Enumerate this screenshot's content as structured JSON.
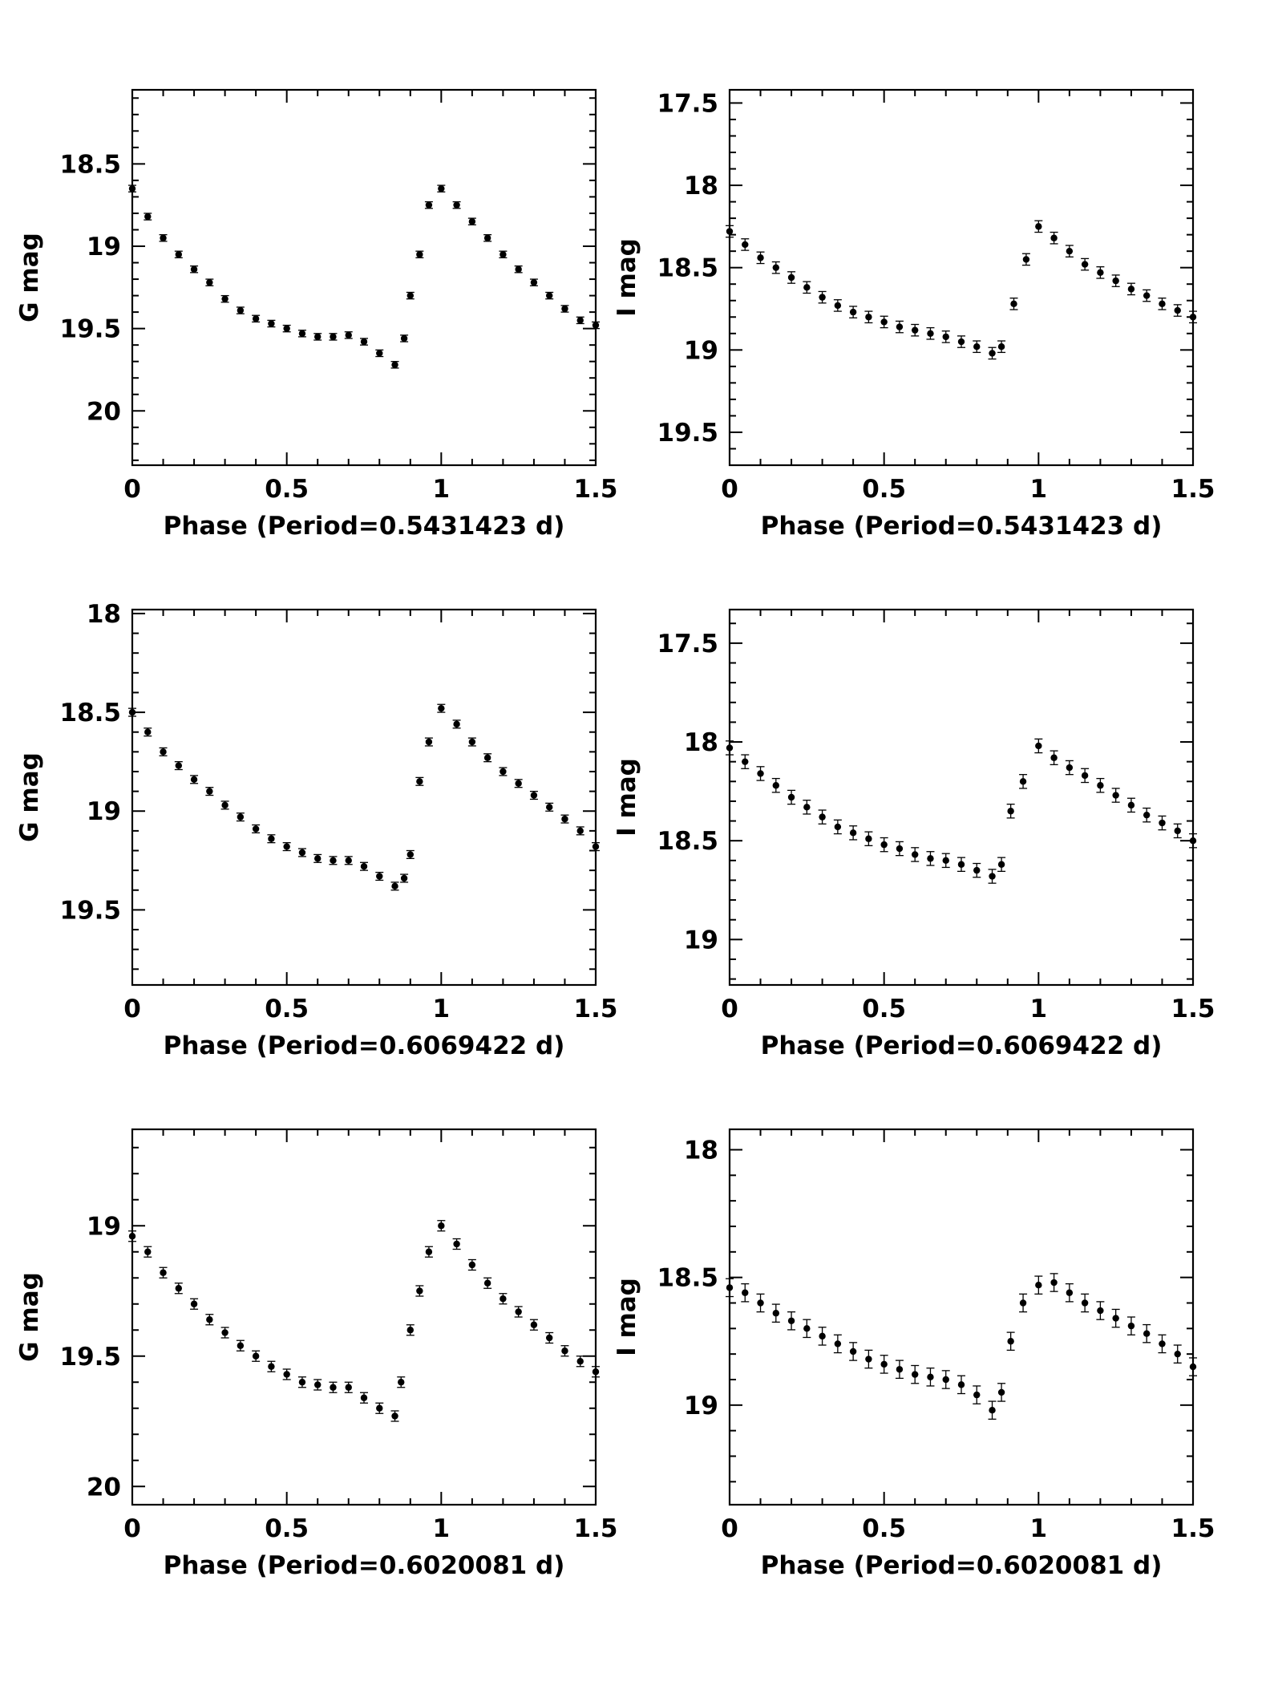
{
  "chart_data": [
    {
      "id": "g1",
      "type": "scatter",
      "band": "G",
      "xlabel": "Phase (Period=0.5431423 d)",
      "ylabel": "G mag",
      "xlim": [
        0,
        1.5
      ],
      "ylim": [
        20.33,
        18.05
      ],
      "xticks": [
        0,
        0.5,
        1,
        1.5
      ],
      "xtick_labels": [
        "0",
        "0.5",
        "1",
        "1.5"
      ],
      "yticks": [
        18.5,
        19,
        19.5,
        20
      ],
      "ytick_labels": [
        "18.5",
        "19",
        "19.5",
        "20"
      ],
      "series": [
        {
          "name": "G",
          "points": [
            [
              0.0,
              18.65
            ],
            [
              0.05,
              18.82
            ],
            [
              0.1,
              18.95
            ],
            [
              0.15,
              19.05
            ],
            [
              0.2,
              19.14
            ],
            [
              0.25,
              19.22
            ],
            [
              0.3,
              19.32
            ],
            [
              0.35,
              19.39
            ],
            [
              0.4,
              19.44
            ],
            [
              0.45,
              19.47
            ],
            [
              0.5,
              19.5
            ],
            [
              0.55,
              19.53
            ],
            [
              0.6,
              19.55
            ],
            [
              0.65,
              19.55
            ],
            [
              0.7,
              19.54
            ],
            [
              0.75,
              19.58
            ],
            [
              0.8,
              19.65
            ],
            [
              0.85,
              19.72
            ],
            [
              0.88,
              19.56
            ],
            [
              0.9,
              19.3
            ],
            [
              0.93,
              19.05
            ],
            [
              0.96,
              18.75
            ],
            [
              1.0,
              18.65
            ],
            [
              1.05,
              18.75
            ],
            [
              1.1,
              18.85
            ],
            [
              1.15,
              18.95
            ],
            [
              1.2,
              19.05
            ],
            [
              1.25,
              19.14
            ],
            [
              1.3,
              19.22
            ],
            [
              1.35,
              19.3
            ],
            [
              1.4,
              19.38
            ],
            [
              1.45,
              19.45
            ],
            [
              1.5,
              19.48
            ]
          ]
        }
      ]
    },
    {
      "id": "i1",
      "type": "scatter",
      "band": "I",
      "xlabel": "Phase (Period=0.5431423 d)",
      "ylabel": "I mag",
      "xlim": [
        0,
        1.5
      ],
      "ylim": [
        19.7,
        17.42
      ],
      "xticks": [
        0,
        0.5,
        1,
        1.5
      ],
      "xtick_labels": [
        "0",
        "0.5",
        "1",
        "1.5"
      ],
      "yticks": [
        17.5,
        18,
        18.5,
        19,
        19.5
      ],
      "ytick_labels": [
        "17.5",
        "18",
        "18.5",
        "19",
        "19.5"
      ],
      "series": [
        {
          "name": "I",
          "points": [
            [
              0.0,
              18.28
            ],
            [
              0.05,
              18.36
            ],
            [
              0.1,
              18.44
            ],
            [
              0.15,
              18.5
            ],
            [
              0.2,
              18.56
            ],
            [
              0.25,
              18.62
            ],
            [
              0.3,
              18.68
            ],
            [
              0.35,
              18.73
            ],
            [
              0.4,
              18.77
            ],
            [
              0.45,
              18.8
            ],
            [
              0.5,
              18.83
            ],
            [
              0.55,
              18.86
            ],
            [
              0.6,
              18.88
            ],
            [
              0.65,
              18.9
            ],
            [
              0.7,
              18.92
            ],
            [
              0.75,
              18.95
            ],
            [
              0.8,
              18.98
            ],
            [
              0.85,
              19.02
            ],
            [
              0.88,
              18.98
            ],
            [
              0.92,
              18.72
            ],
            [
              0.96,
              18.45
            ],
            [
              1.0,
              18.25
            ],
            [
              1.05,
              18.32
            ],
            [
              1.1,
              18.4
            ],
            [
              1.15,
              18.48
            ],
            [
              1.2,
              18.53
            ],
            [
              1.25,
              18.58
            ],
            [
              1.3,
              18.63
            ],
            [
              1.35,
              18.67
            ],
            [
              1.4,
              18.72
            ],
            [
              1.45,
              18.76
            ],
            [
              1.5,
              18.8
            ]
          ]
        }
      ]
    },
    {
      "id": "g2",
      "type": "scatter",
      "band": "G",
      "xlabel": "Phase (Period=0.6069422 d)",
      "ylabel": "G mag",
      "xlim": [
        0,
        1.5
      ],
      "ylim": [
        19.88,
        17.98
      ],
      "xticks": [
        0,
        0.5,
        1,
        1.5
      ],
      "xtick_labels": [
        "0",
        "0.5",
        "1",
        "1.5"
      ],
      "yticks": [
        18,
        18.5,
        19,
        19.5
      ],
      "ytick_labels": [
        "18",
        "18.5",
        "19",
        "19.5"
      ],
      "series": [
        {
          "name": "G",
          "points": [
            [
              0.0,
              18.5
            ],
            [
              0.05,
              18.6
            ],
            [
              0.1,
              18.7
            ],
            [
              0.15,
              18.77
            ],
            [
              0.2,
              18.84
            ],
            [
              0.25,
              18.9
            ],
            [
              0.3,
              18.97
            ],
            [
              0.35,
              19.03
            ],
            [
              0.4,
              19.09
            ],
            [
              0.45,
              19.14
            ],
            [
              0.5,
              19.18
            ],
            [
              0.55,
              19.21
            ],
            [
              0.6,
              19.24
            ],
            [
              0.65,
              19.25
            ],
            [
              0.7,
              19.25
            ],
            [
              0.75,
              19.28
            ],
            [
              0.8,
              19.33
            ],
            [
              0.85,
              19.38
            ],
            [
              0.88,
              19.34
            ],
            [
              0.9,
              19.22
            ],
            [
              0.93,
              18.85
            ],
            [
              0.96,
              18.65
            ],
            [
              1.0,
              18.48
            ],
            [
              1.05,
              18.56
            ],
            [
              1.1,
              18.65
            ],
            [
              1.15,
              18.73
            ],
            [
              1.2,
              18.8
            ],
            [
              1.25,
              18.86
            ],
            [
              1.3,
              18.92
            ],
            [
              1.35,
              18.98
            ],
            [
              1.4,
              19.04
            ],
            [
              1.45,
              19.1
            ],
            [
              1.5,
              19.18
            ]
          ]
        }
      ]
    },
    {
      "id": "i2",
      "type": "scatter",
      "band": "I",
      "xlabel": "Phase (Period=0.6069422 d)",
      "ylabel": "I mag",
      "xlim": [
        0,
        1.5
      ],
      "ylim": [
        19.23,
        17.33
      ],
      "xticks": [
        0,
        0.5,
        1,
        1.5
      ],
      "xtick_labels": [
        "0",
        "0.5",
        "1",
        "1.5"
      ],
      "yticks": [
        17.5,
        18,
        18.5,
        19
      ],
      "ytick_labels": [
        "17.5",
        "18",
        "18.5",
        "19"
      ],
      "series": [
        {
          "name": "I",
          "points": [
            [
              0.0,
              18.03
            ],
            [
              0.05,
              18.1
            ],
            [
              0.1,
              18.16
            ],
            [
              0.15,
              18.22
            ],
            [
              0.2,
              18.28
            ],
            [
              0.25,
              18.33
            ],
            [
              0.3,
              18.38
            ],
            [
              0.35,
              18.43
            ],
            [
              0.4,
              18.46
            ],
            [
              0.45,
              18.49
            ],
            [
              0.5,
              18.52
            ],
            [
              0.55,
              18.54
            ],
            [
              0.6,
              18.57
            ],
            [
              0.65,
              18.59
            ],
            [
              0.7,
              18.6
            ],
            [
              0.75,
              18.62
            ],
            [
              0.8,
              18.65
            ],
            [
              0.85,
              18.68
            ],
            [
              0.88,
              18.62
            ],
            [
              0.91,
              18.35
            ],
            [
              0.95,
              18.2
            ],
            [
              1.0,
              18.02
            ],
            [
              1.05,
              18.08
            ],
            [
              1.1,
              18.13
            ],
            [
              1.15,
              18.17
            ],
            [
              1.2,
              18.22
            ],
            [
              1.25,
              18.27
            ],
            [
              1.3,
              18.32
            ],
            [
              1.35,
              18.37
            ],
            [
              1.4,
              18.41
            ],
            [
              1.45,
              18.45
            ],
            [
              1.5,
              18.5
            ]
          ]
        }
      ]
    },
    {
      "id": "g3",
      "type": "scatter",
      "band": "G",
      "xlabel": "Phase (Period=0.6020081 d)",
      "ylabel": "G mag",
      "xlim": [
        0,
        1.5
      ],
      "ylim": [
        20.07,
        18.63
      ],
      "xticks": [
        0,
        0.5,
        1,
        1.5
      ],
      "xtick_labels": [
        "0",
        "0.5",
        "1",
        "1.5"
      ],
      "yticks": [
        19,
        19.5,
        20
      ],
      "ytick_labels": [
        "19",
        "19.5",
        "20"
      ],
      "series": [
        {
          "name": "G",
          "points": [
            [
              0.0,
              19.04
            ],
            [
              0.05,
              19.1
            ],
            [
              0.1,
              19.18
            ],
            [
              0.15,
              19.24
            ],
            [
              0.2,
              19.3
            ],
            [
              0.25,
              19.36
            ],
            [
              0.3,
              19.41
            ],
            [
              0.35,
              19.46
            ],
            [
              0.4,
              19.5
            ],
            [
              0.45,
              19.54
            ],
            [
              0.5,
              19.57
            ],
            [
              0.55,
              19.6
            ],
            [
              0.6,
              19.61
            ],
            [
              0.65,
              19.62
            ],
            [
              0.7,
              19.62
            ],
            [
              0.75,
              19.66
            ],
            [
              0.8,
              19.7
            ],
            [
              0.85,
              19.73
            ],
            [
              0.87,
              19.6
            ],
            [
              0.9,
              19.4
            ],
            [
              0.93,
              19.25
            ],
            [
              0.96,
              19.1
            ],
            [
              1.0,
              19.0
            ],
            [
              1.05,
              19.07
            ],
            [
              1.1,
              19.15
            ],
            [
              1.15,
              19.22
            ],
            [
              1.2,
              19.28
            ],
            [
              1.25,
              19.33
            ],
            [
              1.3,
              19.38
            ],
            [
              1.35,
              19.43
            ],
            [
              1.4,
              19.48
            ],
            [
              1.45,
              19.52
            ],
            [
              1.5,
              19.56
            ]
          ]
        }
      ]
    },
    {
      "id": "i3",
      "type": "scatter",
      "band": "I",
      "xlabel": "Phase (Period=0.6020081 d)",
      "ylabel": "I mag",
      "xlim": [
        0,
        1.5
      ],
      "ylim": [
        19.39,
        17.92
      ],
      "xticks": [
        0,
        0.5,
        1,
        1.5
      ],
      "xtick_labels": [
        "0",
        "0.5",
        "1",
        "1.5"
      ],
      "yticks": [
        18,
        18.5,
        19
      ],
      "ytick_labels": [
        "18",
        "18.5",
        "19"
      ],
      "series": [
        {
          "name": "I",
          "points": [
            [
              0.0,
              18.54
            ],
            [
              0.05,
              18.56
            ],
            [
              0.1,
              18.6
            ],
            [
              0.15,
              18.64
            ],
            [
              0.2,
              18.67
            ],
            [
              0.25,
              18.7
            ],
            [
              0.3,
              18.73
            ],
            [
              0.35,
              18.76
            ],
            [
              0.4,
              18.79
            ],
            [
              0.45,
              18.82
            ],
            [
              0.5,
              18.84
            ],
            [
              0.55,
              18.86
            ],
            [
              0.6,
              18.88
            ],
            [
              0.65,
              18.89
            ],
            [
              0.7,
              18.9
            ],
            [
              0.75,
              18.92
            ],
            [
              0.8,
              18.96
            ],
            [
              0.85,
              19.02
            ],
            [
              0.88,
              18.95
            ],
            [
              0.91,
              18.75
            ],
            [
              0.95,
              18.6
            ],
            [
              1.0,
              18.53
            ],
            [
              1.05,
              18.52
            ],
            [
              1.1,
              18.56
            ],
            [
              1.15,
              18.6
            ],
            [
              1.2,
              18.63
            ],
            [
              1.25,
              18.66
            ],
            [
              1.3,
              18.69
            ],
            [
              1.35,
              18.72
            ],
            [
              1.4,
              18.76
            ],
            [
              1.45,
              18.8
            ],
            [
              1.5,
              18.85
            ]
          ]
        }
      ]
    }
  ]
}
